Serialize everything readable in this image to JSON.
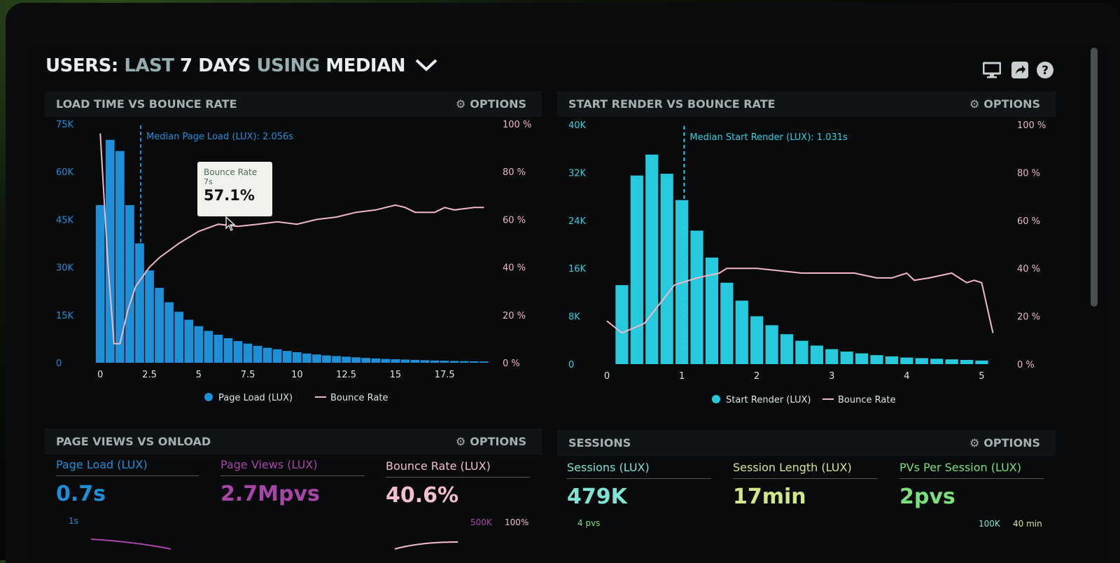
{
  "header": {
    "title_users": "USERS:",
    "title_last": "LAST",
    "title_days": "7 DAYS",
    "title_using": "USING",
    "title_median": "MEDIAN",
    "icons": [
      "monitor-icon",
      "share-icon",
      "help-icon"
    ]
  },
  "panels": {
    "load_time": {
      "title": "LOAD TIME VS BOUNCE RATE",
      "options_label": "OPTIONS"
    },
    "start_render": {
      "title": "START RENDER VS BOUNCE RATE",
      "options_label": "OPTIONS"
    },
    "page_views": {
      "title": "PAGE VIEWS VS ONLOAD",
      "options_label": "OPTIONS"
    },
    "sessions": {
      "title": "SESSIONS",
      "options_label": "OPTIONS"
    }
  },
  "tooltip": {
    "title": "Bounce Rate",
    "sub": "7s",
    "value": "57.1%"
  },
  "stats": {
    "page_load": {
      "label": "Page Load (LUX)",
      "value": "0.7s",
      "color": "#1e8fd6"
    },
    "page_views": {
      "label": "Page Views (LUX)",
      "value": "2.7Mpvs",
      "color": "#a845a8"
    },
    "bounce_rate": {
      "label": "Bounce Rate (LUX)",
      "value": "40.6%",
      "color": "#f4bfcd"
    },
    "sessions": {
      "label": "Sessions (LUX)",
      "value": "479K",
      "color": "#7fe3d6"
    },
    "session_length": {
      "label": "Session Length (LUX)",
      "value": "17min",
      "color": "#d0e88a"
    },
    "pvs_per_session": {
      "label": "PVs Per Session (LUX)",
      "value": "2pvs",
      "color": "#7be07c"
    }
  },
  "mini_axes": {
    "pv_left": "1s",
    "pv_right1": "500K",
    "pv_right2": "100%",
    "s_left": "4 pvs",
    "s_right1": "100K",
    "s_right2": "40 min"
  },
  "colors": {
    "blue_bar": "#1e90d8",
    "cyan_bar": "#27c9dc",
    "pink_line": "#f0b8c8",
    "blue_text": "#1f8fd8",
    "cyan_text": "#2fd0e0"
  },
  "chart_data": [
    {
      "type": "bar",
      "title": "LOAD TIME VS BOUNCE RATE",
      "xlabel": "",
      "ylabel": "",
      "x_ticks": [
        "0",
        "2.5",
        "5",
        "7.5",
        "10",
        "12.5",
        "15",
        "17.5"
      ],
      "x_range": [
        -0.4,
        19.7
      ],
      "y_ticks": [
        "75K",
        "60K",
        "45K",
        "30K",
        "15K",
        "0"
      ],
      "ylim": [
        0,
        75000
      ],
      "y2_ticks": [
        "100 %",
        "80 %",
        "60 %",
        "40 %",
        "20 %",
        "0 %"
      ],
      "y2lim": [
        0,
        100
      ],
      "bar_width": 0.45,
      "series": [
        {
          "name": "Page Load (LUX)",
          "kind": "bar",
          "x": [
            0,
            0.5,
            1,
            1.5,
            2,
            2.5,
            3,
            3.5,
            4,
            4.5,
            5,
            5.5,
            6,
            6.5,
            7,
            7.5,
            8,
            8.5,
            9,
            9.5,
            10,
            10.5,
            11,
            11.5,
            12,
            12.5,
            13,
            13.5,
            14,
            14.5,
            15,
            15.5,
            16,
            16.5,
            17,
            17.5,
            18,
            18.5,
            19,
            19.5
          ],
          "values": [
            49500,
            70000,
            66500,
            49500,
            37500,
            29000,
            23500,
            19000,
            16000,
            13500,
            11500,
            10000,
            8800,
            7700,
            6800,
            6000,
            5300,
            4700,
            4200,
            3700,
            3300,
            2900,
            2600,
            2300,
            2100,
            1900,
            1700,
            1500,
            1350,
            1200,
            1100,
            1000,
            900,
            800,
            700,
            620,
            560,
            500,
            450,
            400
          ]
        },
        {
          "name": "Bounce Rate",
          "kind": "line",
          "axis": "right",
          "points": [
            [
              0,
              96
            ],
            [
              0.4,
              40
            ],
            [
              0.7,
              8
            ],
            [
              1.0,
              8
            ],
            [
              1.4,
              22
            ],
            [
              1.8,
              32
            ],
            [
              2.5,
              40
            ],
            [
              3,
              44
            ],
            [
              4,
              50
            ],
            [
              5,
              55
            ],
            [
              6,
              58
            ],
            [
              7,
              57.1
            ],
            [
              8,
              58
            ],
            [
              9,
              59
            ],
            [
              10,
              58
            ],
            [
              11,
              60
            ],
            [
              12,
              61
            ],
            [
              13,
              63
            ],
            [
              14,
              64
            ],
            [
              15,
              66
            ],
            [
              15.5,
              65
            ],
            [
              16,
              63
            ],
            [
              17,
              63
            ],
            [
              17.5,
              65
            ],
            [
              18,
              64
            ],
            [
              19,
              65
            ],
            [
              19.5,
              65
            ]
          ]
        }
      ],
      "annotation": {
        "label": "Median Page Load (LUX): 2.056s",
        "x": 2.056
      },
      "legend": [
        "Page Load (LUX)",
        "Bounce Rate"
      ],
      "legend_position": "bottom"
    },
    {
      "type": "bar",
      "title": "START RENDER VS BOUNCE RATE",
      "xlabel": "",
      "ylabel": "",
      "x_ticks": [
        "0",
        "1",
        "2",
        "3",
        "4",
        "5"
      ],
      "x_range": [
        0,
        5.22
      ],
      "y_ticks": [
        "40K",
        "32K",
        "24K",
        "16K",
        "8K",
        "0"
      ],
      "ylim": [
        0,
        40000
      ],
      "y2_ticks": [
        "100 %",
        "80 %",
        "60 %",
        "40 %",
        "20 %",
        "0 %"
      ],
      "y2lim": [
        0,
        100
      ],
      "bar_width": 0.17,
      "series": [
        {
          "name": "Start Render (LUX)",
          "kind": "bar",
          "x": [
            0.2,
            0.4,
            0.6,
            0.8,
            1.0,
            1.2,
            1.4,
            1.6,
            1.8,
            2.0,
            2.2,
            2.4,
            2.6,
            2.8,
            3.0,
            3.2,
            3.4,
            3.6,
            3.8,
            4.0,
            4.2,
            4.4,
            4.6,
            4.8,
            5.0
          ],
          "values": [
            13200,
            31500,
            35000,
            31800,
            27400,
            22300,
            17800,
            13600,
            10600,
            8000,
            6500,
            5000,
            3900,
            3100,
            2500,
            2100,
            1800,
            1500,
            1300,
            1100,
            1000,
            900,
            800,
            700,
            600
          ]
        },
        {
          "name": "Bounce Rate",
          "kind": "line",
          "axis": "right",
          "points": [
            [
              0,
              18
            ],
            [
              0.2,
              13
            ],
            [
              0.5,
              17
            ],
            [
              0.7,
              25
            ],
            [
              0.9,
              33
            ],
            [
              1.2,
              36
            ],
            [
              1.5,
              38
            ],
            [
              1.6,
              40
            ],
            [
              2,
              40
            ],
            [
              2.3,
              39
            ],
            [
              2.6,
              38
            ],
            [
              3,
              38
            ],
            [
              3.3,
              38
            ],
            [
              3.6,
              36
            ],
            [
              3.8,
              36
            ],
            [
              4,
              38
            ],
            [
              4.1,
              35
            ],
            [
              4.3,
              36
            ],
            [
              4.6,
              38
            ],
            [
              4.8,
              34
            ],
            [
              4.9,
              35
            ],
            [
              5.0,
              34
            ],
            [
              5.1,
              20
            ],
            [
              5.15,
              13
            ]
          ]
        }
      ],
      "annotation": {
        "label": "Median Start Render (LUX): 1.031s",
        "x": 1.031
      },
      "legend": [
        "Start Render (LUX)",
        "Bounce Rate"
      ],
      "legend_position": "bottom"
    }
  ]
}
